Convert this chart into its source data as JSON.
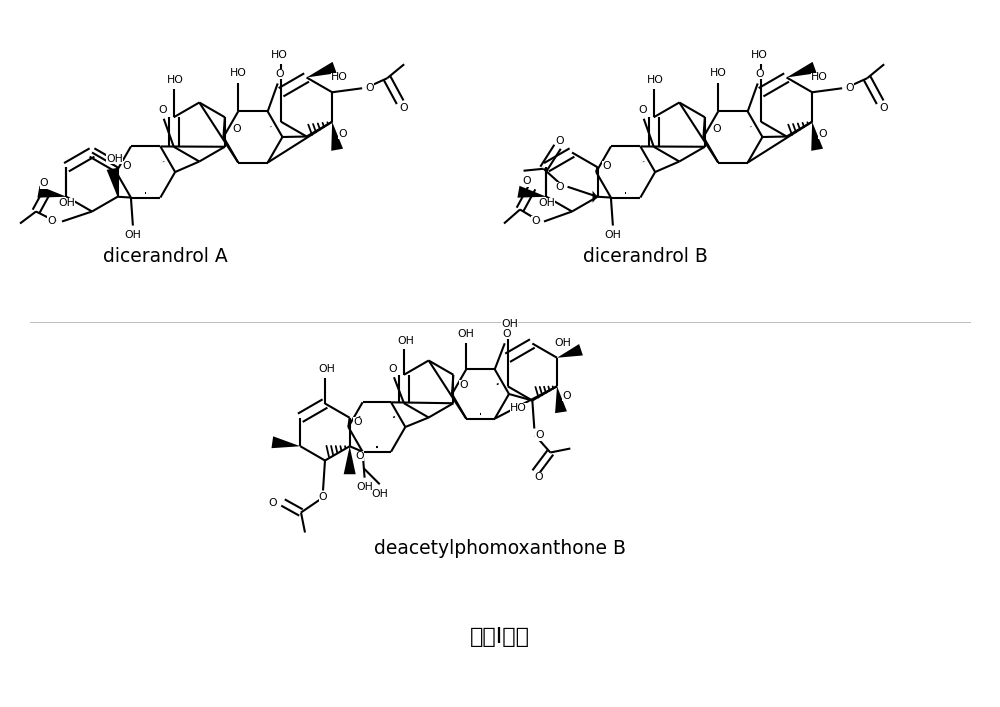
{
  "bg": "#ffffff",
  "lc": "#000000",
  "lw": 1.5,
  "fs": 7.8,
  "label_fs": 13.5,
  "formula_fs": 16,
  "label_a": "dicerandrol A",
  "label_b": "dicerandrol B",
  "label_c": "deacetylphomoxanthone B",
  "formula": "式（Ⅰ）。",
  "figsize": [
    10.0,
    7.07
  ],
  "dpi": 100
}
